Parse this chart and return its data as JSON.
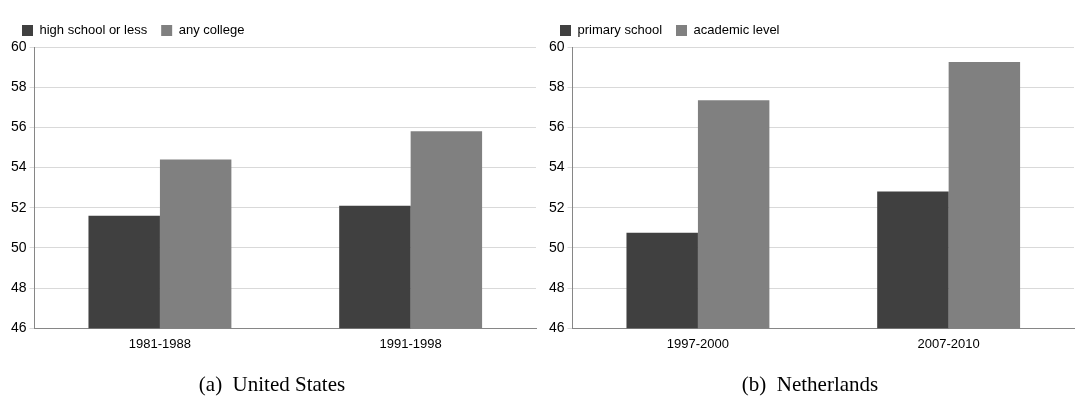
{
  "chart_data": [
    {
      "type": "bar",
      "title": "(a)  United States",
      "categories": [
        "1981-1988",
        "1991-1998"
      ],
      "series": [
        {
          "name": "high school or less",
          "color": "#404040",
          "values": [
            51.6,
            52.1
          ]
        },
        {
          "name": "any college",
          "color": "#808080",
          "values": [
            54.4,
            55.8
          ]
        }
      ],
      "ylim": [
        46,
        60
      ],
      "yticks": [
        46,
        48,
        50,
        52,
        54,
        56,
        58,
        60
      ],
      "grid": "y",
      "legend": "top left"
    },
    {
      "type": "bar",
      "title": "(b)  Netherlands",
      "categories": [
        "1997-2000",
        "2007-2010"
      ],
      "series": [
        {
          "name": "primary school",
          "color": "#404040",
          "values": [
            50.75,
            52.8
          ]
        },
        {
          "name": "academic level",
          "color": "#808080",
          "values": [
            57.35,
            59.25
          ]
        }
      ],
      "ylim": [
        46,
        60
      ],
      "yticks": [
        46,
        48,
        50,
        52,
        54,
        56,
        58,
        60
      ],
      "grid": "y",
      "legend": "top left"
    }
  ]
}
